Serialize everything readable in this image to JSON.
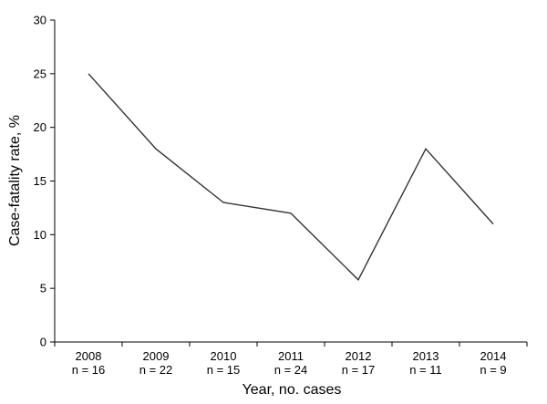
{
  "chart_data": {
    "type": "line",
    "categories": [
      "2008",
      "2009",
      "2010",
      "2011",
      "2012",
      "2013",
      "2014"
    ],
    "category_sublabels": [
      "n = 16",
      "n = 22",
      "n = 15",
      "n = 24",
      "n = 17",
      "n = 11",
      "n = 9"
    ],
    "series": [
      {
        "values": [
          25,
          18,
          13,
          12,
          5.8,
          18,
          11
        ]
      }
    ],
    "xlabel": "Year, no. cases",
    "ylabel": "Case-fatality rate, %",
    "ylim": [
      0,
      30
    ],
    "yticks": [
      0,
      5,
      10,
      15,
      20,
      25,
      30
    ],
    "grid": false,
    "line_color": "#333333"
  }
}
